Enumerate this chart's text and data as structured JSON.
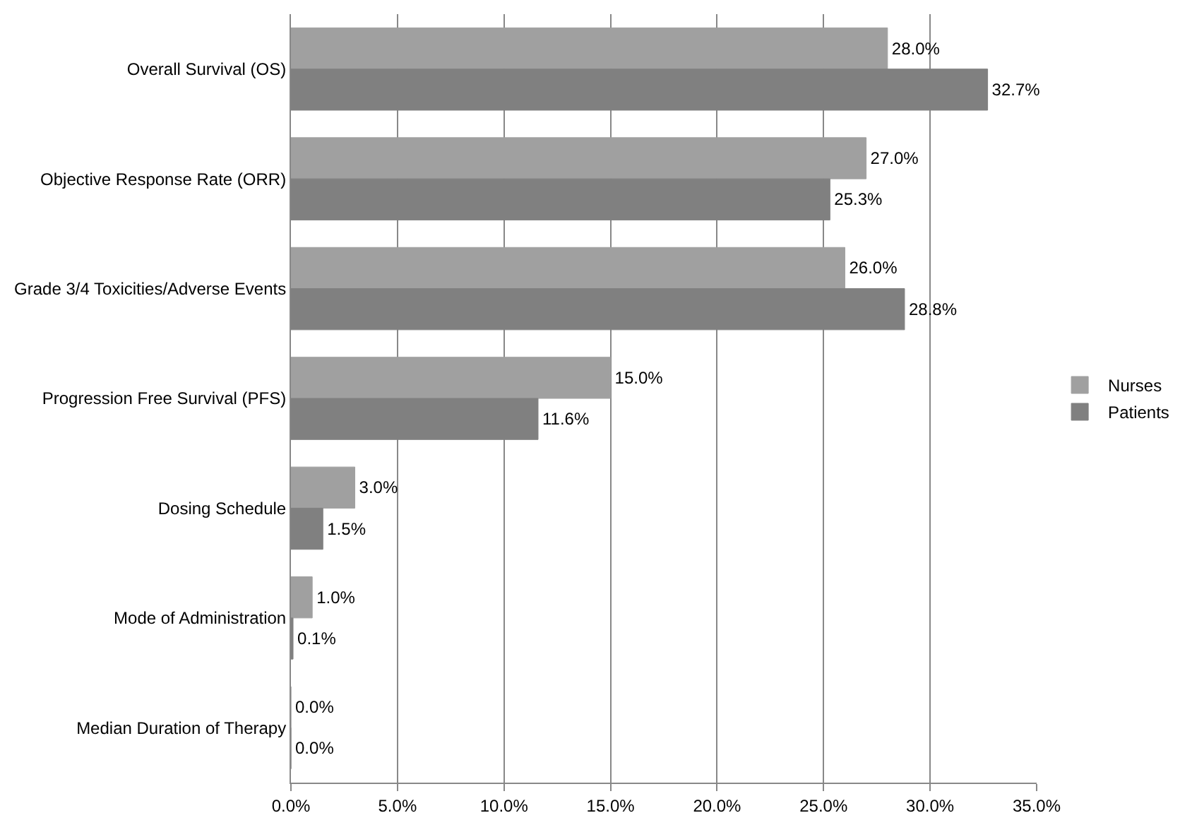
{
  "chart_data": {
    "type": "bar",
    "orientation": "horizontal",
    "categories": [
      "Overall Survival (OS)",
      "Objective Response Rate (ORR)",
      "Grade 3/4 Toxicities/Adverse Events",
      "Progression Free Survival (PFS)",
      "Dosing Schedule",
      "Mode of Administration",
      "Median Duration of Therapy"
    ],
    "series": [
      {
        "name": "Nurses",
        "color": "#a0a0a0",
        "values": [
          28.0,
          27.0,
          26.0,
          15.0,
          3.0,
          1.0,
          0.0
        ],
        "value_labels": [
          "28.0%",
          "27.0%",
          "26.0%",
          "15.0%",
          "3.0%",
          "1.0%",
          "0.0%"
        ]
      },
      {
        "name": "Patients",
        "color": "#808080",
        "values": [
          32.7,
          25.3,
          28.8,
          11.6,
          1.5,
          0.1,
          0.0
        ],
        "value_labels": [
          "32.7%",
          "25.3%",
          "28.8%",
          "11.6%",
          "1.5%",
          "0.1%",
          "0.0%"
        ]
      }
    ],
    "xlim": [
      0,
      35
    ],
    "xticks": [
      {
        "value": 0,
        "label": "0.0%"
      },
      {
        "value": 5,
        "label": "5.0%"
      },
      {
        "value": 10,
        "label": "10.0%"
      },
      {
        "value": 15,
        "label": "15.0%"
      },
      {
        "value": 20,
        "label": "20.0%"
      },
      {
        "value": 25,
        "label": "25.0%"
      },
      {
        "value": 30,
        "label": "30.0%"
      },
      {
        "value": 35,
        "label": "35.0%"
      }
    ],
    "grid": "x",
    "legend": "right"
  }
}
